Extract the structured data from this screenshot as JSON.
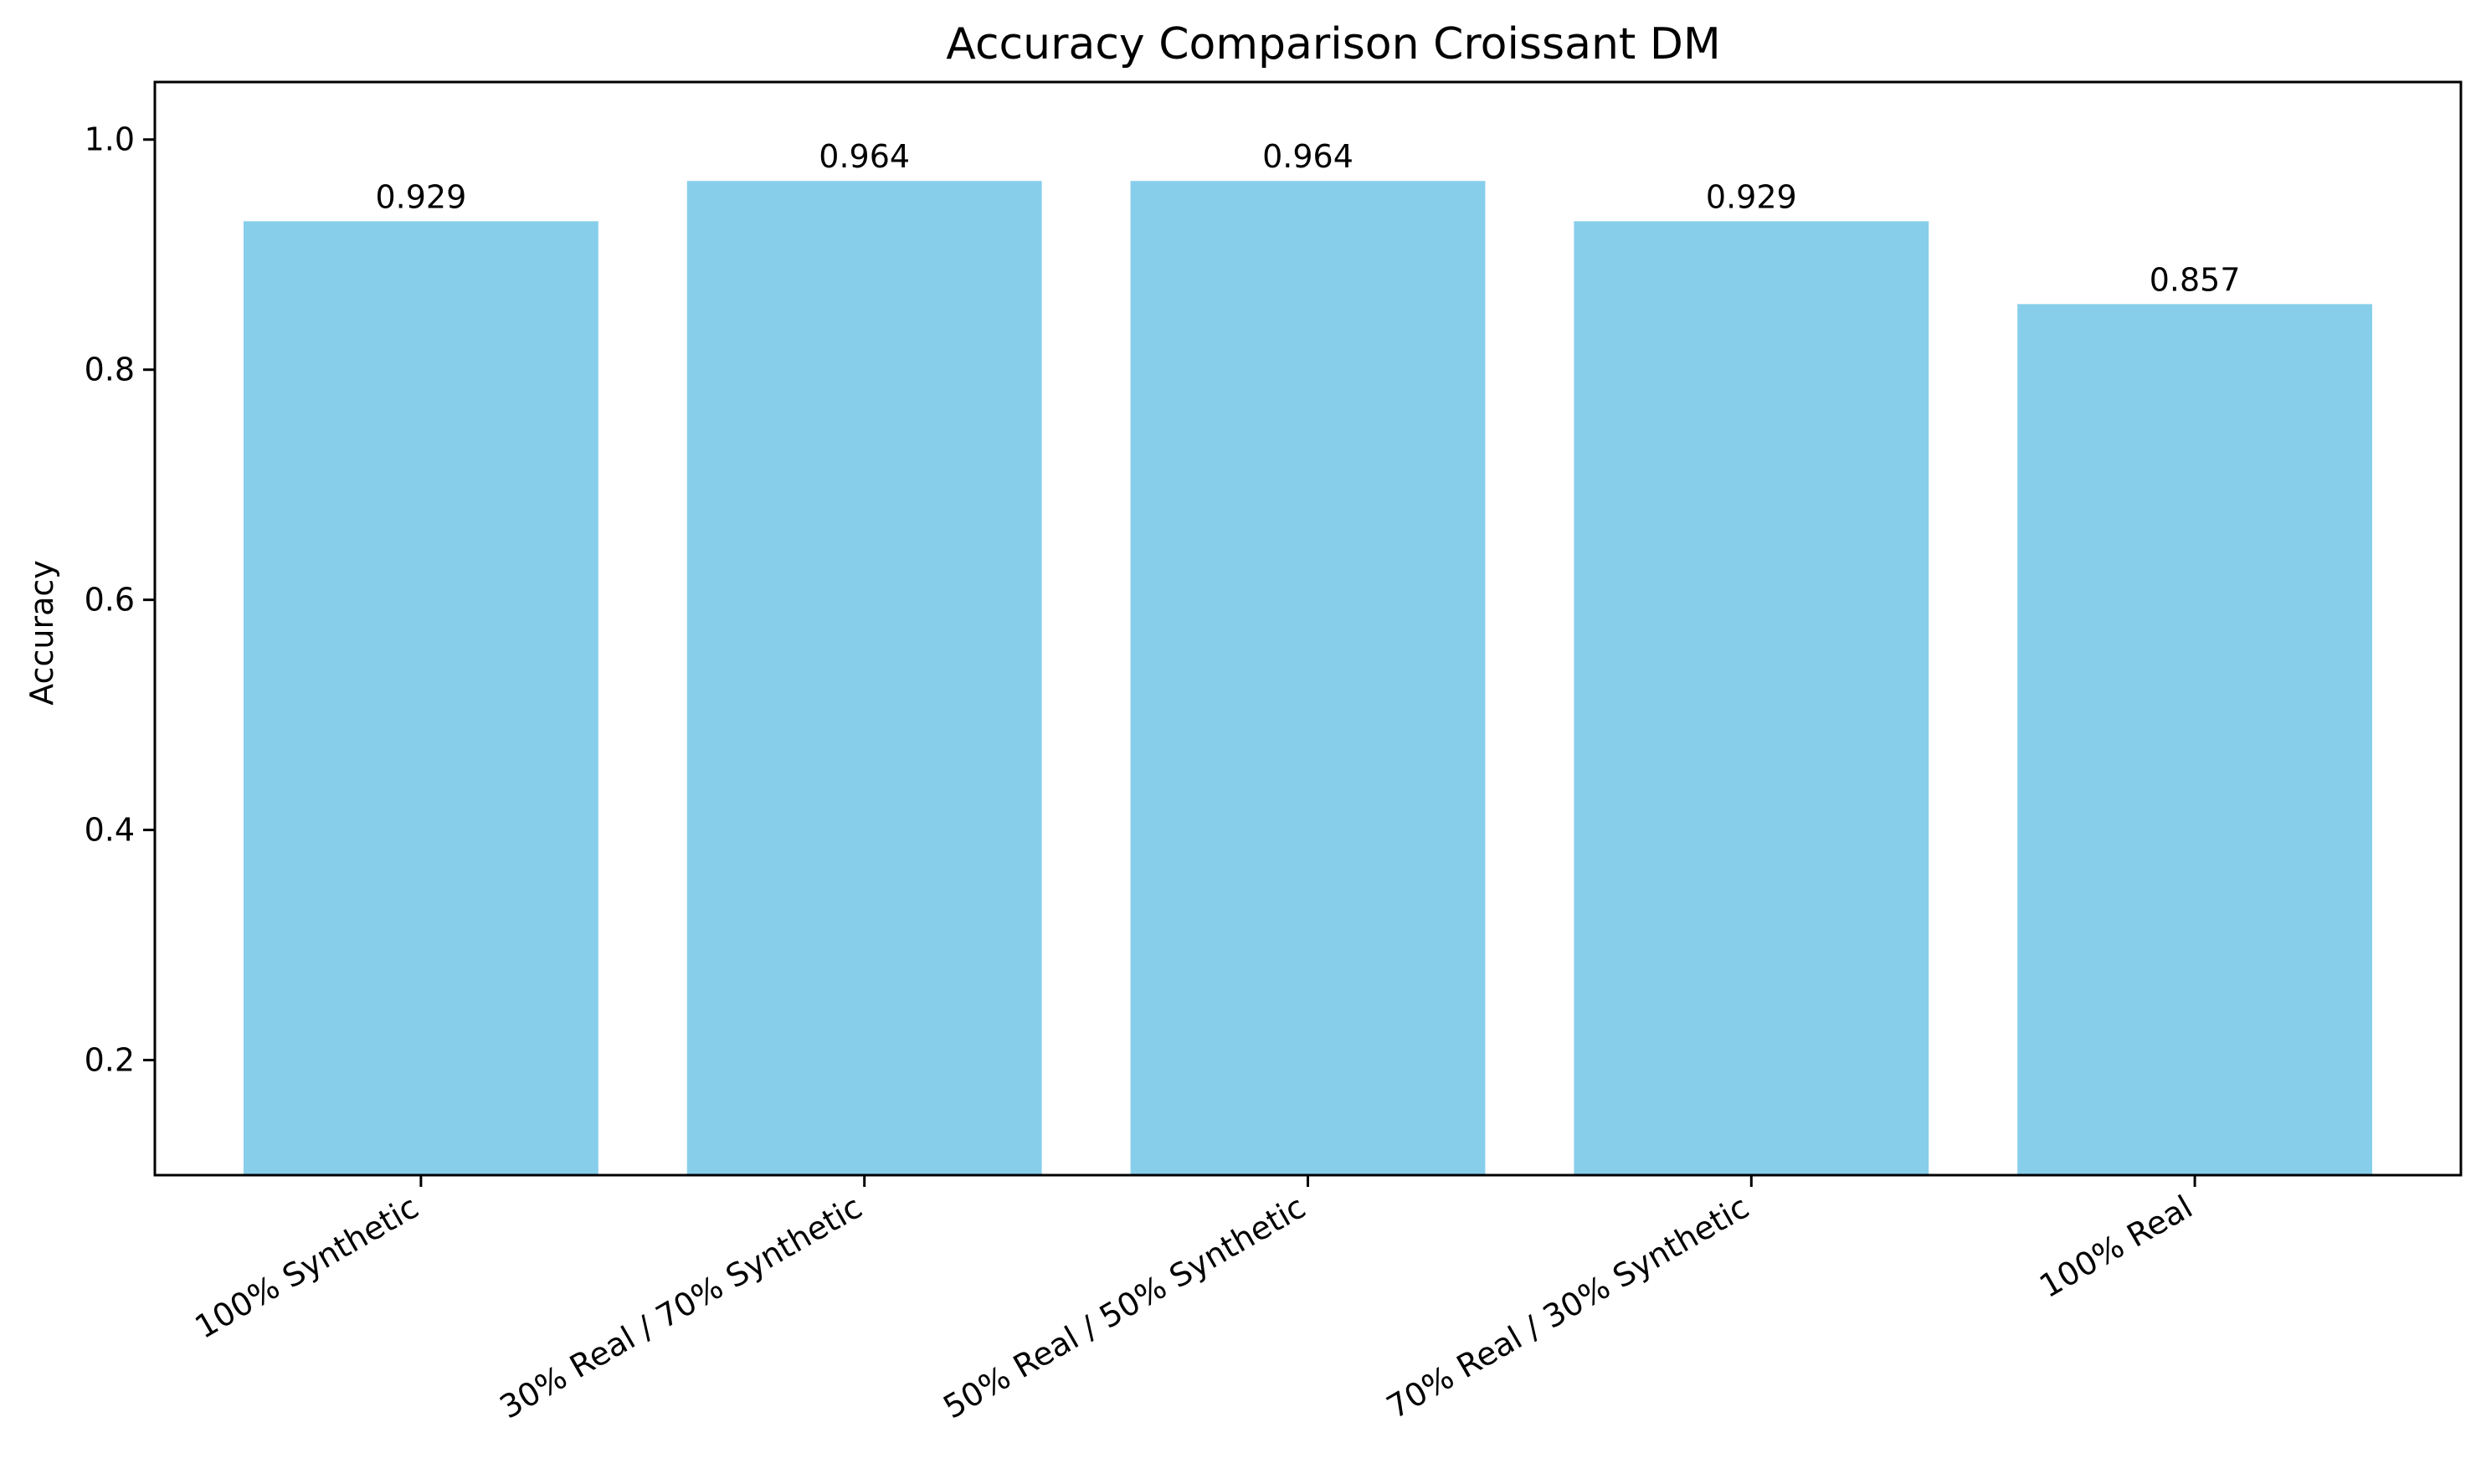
{
  "chart_data": {
    "type": "bar",
    "title": "Accuracy Comparison Croissant DM",
    "xlabel": "",
    "ylabel": "Accuracy",
    "categories": [
      "100% Synthetic",
      "30% Real / 70% Synthetic",
      "50% Real / 50% Synthetic",
      "70% Real / 30% Synthetic",
      "100% Real"
    ],
    "values": [
      0.929,
      0.964,
      0.964,
      0.929,
      0.857
    ],
    "value_labels": [
      "0.929",
      "0.964",
      "0.964",
      "0.929",
      "0.857"
    ],
    "ylim": [
      0.1,
      1.05
    ],
    "yticks": [
      0.2,
      0.4,
      0.6,
      0.8,
      1.0
    ],
    "ytick_labels": [
      "0.2",
      "0.4",
      "0.6",
      "0.8",
      "1.0"
    ],
    "xtick_rotation": 30,
    "grid": false,
    "legend": "none",
    "bar_color": "#87ceeb",
    "axis_color": "#000000"
  }
}
